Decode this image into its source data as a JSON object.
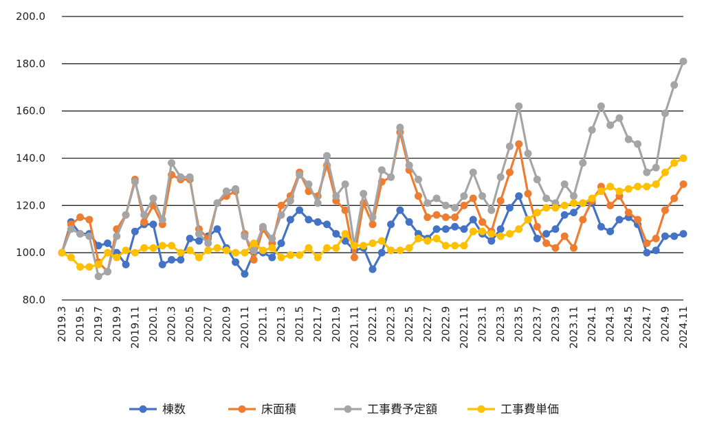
{
  "chart_data": {
    "type": "line",
    "x": [
      "2019.3",
      "2019.4",
      "2019.5",
      "2019.6",
      "2019.7",
      "2019.8",
      "2019.9",
      "2019.10",
      "2019.11",
      "2019.12",
      "2020.1",
      "2020.2",
      "2020.3",
      "2020.4",
      "2020.5",
      "2020.6",
      "2020.7",
      "2020.8",
      "2020.9",
      "2020.10",
      "2020.11",
      "2020.12",
      "2021.1",
      "2021.2",
      "2021.3",
      "2021.4",
      "2021.5",
      "2021.6",
      "2021.7",
      "2021.8",
      "2021.9",
      "2021.10",
      "2021.11",
      "2021.12",
      "2022.1",
      "2022.2",
      "2022.3",
      "2022.4",
      "2022.5",
      "2022.6",
      "2022.7",
      "2022.8",
      "2022.9",
      "2022.10",
      "2022.11",
      "2022.12",
      "2023.1",
      "2023.2",
      "2023.3",
      "2023.4",
      "2023.5",
      "2023.6",
      "2023.7",
      "2023.8",
      "2023.9",
      "2023.10",
      "2023.11",
      "2023.12",
      "2024.1",
      "2024.2",
      "2024.3",
      "2024.4",
      "2024.5",
      "2024.6",
      "2024.7",
      "2024.8",
      "2024.9",
      "2024.10",
      "2024.11"
    ],
    "x_tick_labels": [
      "2019.3",
      "2019.5",
      "2019.7",
      "2019.9",
      "2019.11",
      "2020.1",
      "2020.3",
      "2020.5",
      "2020.7",
      "2020.9",
      "2020.11",
      "2021.1",
      "2021.3",
      "2021.5",
      "2021.7",
      "2021.9",
      "2021.11",
      "2022.1",
      "2022.3",
      "2022.5",
      "2022.7",
      "2022.9",
      "2022.11",
      "2023.1",
      "2023.3",
      "2023.5",
      "2023.7",
      "2023.9",
      "2023.11",
      "2024.1",
      "2024.3",
      "2024.5",
      "2024.7",
      "2024.9",
      "2024.11"
    ],
    "y_tick_labels": [
      "80.0",
      "100.0",
      "120.0",
      "140.0",
      "160.0",
      "180.0",
      "200.0"
    ],
    "ylim": [
      80,
      200
    ],
    "grid": true,
    "legend_position": "bottom",
    "series": [
      {
        "name": "棟数",
        "color": "#4472C4",
        "values": [
          100,
          113,
          108,
          108,
          103,
          104,
          100,
          95,
          109,
          112,
          112,
          95,
          97,
          97,
          106,
          105,
          107,
          110,
          102,
          96,
          91,
          100,
          100,
          98,
          104,
          114,
          118,
          114,
          113,
          112,
          108,
          105,
          101,
          102,
          93,
          100,
          112,
          118,
          113,
          108,
          106,
          110,
          110,
          111,
          110,
          114,
          108,
          105,
          110,
          119,
          124,
          114,
          106,
          108,
          110,
          116,
          117,
          121,
          121,
          111,
          109,
          114,
          115,
          112,
          100,
          101,
          107,
          107,
          108
        ]
      },
      {
        "name": "床面積",
        "color": "#ED7D31",
        "values": [
          100,
          112,
          115,
          114,
          96,
          92,
          110,
          116,
          131,
          113,
          120,
          112,
          133,
          131,
          131,
          110,
          106,
          121,
          124,
          126,
          108,
          97,
          110,
          104,
          120,
          124,
          134,
          126,
          124,
          137,
          122,
          118,
          98,
          121,
          112,
          130,
          132,
          151,
          135,
          124,
          115,
          116,
          115,
          115,
          120,
          123,
          113,
          109,
          122,
          134,
          146,
          125,
          111,
          104,
          102,
          107,
          102,
          114,
          122,
          128,
          120,
          124,
          117,
          114,
          104,
          106,
          118,
          123,
          129
        ]
      },
      {
        "name": "工事費予定額",
        "color": "#A5A5A5",
        "values": [
          100,
          110,
          108,
          107,
          90,
          92,
          107,
          116,
          130,
          116,
          123,
          114,
          138,
          132,
          132,
          108,
          104,
          121,
          126,
          127,
          107,
          101,
          111,
          106,
          116,
          122,
          133,
          129,
          121,
          141,
          124,
          129,
          103,
          125,
          115,
          135,
          132,
          153,
          137,
          131,
          121,
          123,
          120,
          119,
          124,
          134,
          124,
          118,
          132,
          145,
          162,
          142,
          131,
          123,
          121,
          129,
          124,
          138,
          152,
          162,
          154,
          157,
          148,
          146,
          134,
          136,
          159,
          171,
          181
        ]
      },
      {
        "name": "工事費単価",
        "color": "#FFC000",
        "values": [
          100,
          98,
          94,
          94,
          95,
          100,
          98,
          101,
          100,
          102,
          102,
          103,
          103,
          100,
          101,
          98,
          101,
          102,
          101,
          100,
          100,
          104,
          101,
          102,
          98,
          99,
          99,
          102,
          98,
          102,
          102,
          108,
          103,
          103,
          104,
          105,
          101,
          101,
          102,
          106,
          105,
          106,
          103,
          103,
          103,
          109,
          109,
          108,
          107,
          108,
          110,
          114,
          117,
          119,
          119,
          120,
          121,
          121,
          123,
          126,
          128,
          126,
          127,
          128,
          128,
          129,
          134,
          138,
          140
        ]
      }
    ]
  }
}
